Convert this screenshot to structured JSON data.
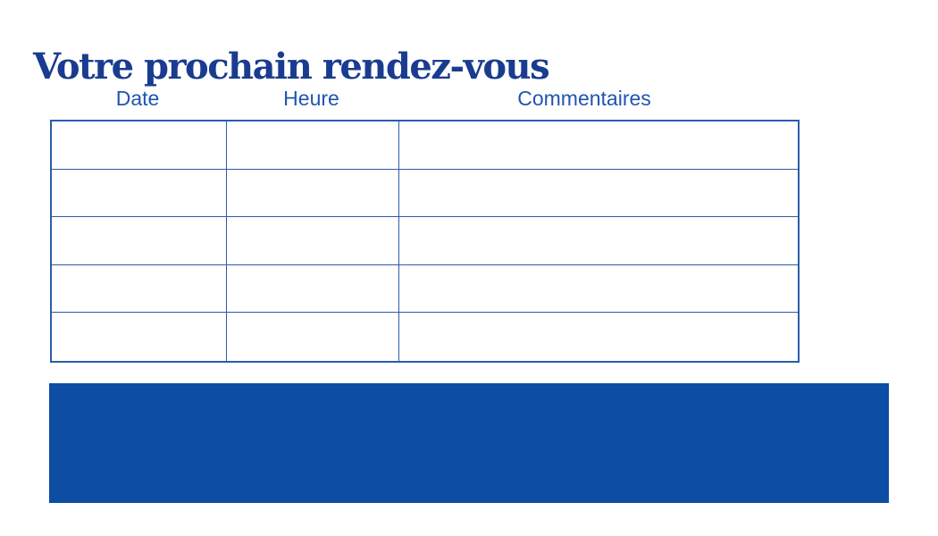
{
  "title": {
    "text": "Votre prochain rendez-vous"
  },
  "table": {
    "headers": [
      "Date",
      "Heure",
      "Commentaires"
    ],
    "rows": [
      [
        "",
        "",
        ""
      ],
      [
        "",
        "",
        ""
      ],
      [
        "",
        "",
        ""
      ],
      [
        "",
        "",
        ""
      ],
      [
        "",
        "",
        ""
      ]
    ]
  },
  "footer_band": {
    "label": ""
  },
  "colors": {
    "page-bg": "#ffffff",
    "title": "#1a3c90",
    "header": "#1f55b0",
    "border": "#2b5cab",
    "band": "#0d4da3"
  }
}
